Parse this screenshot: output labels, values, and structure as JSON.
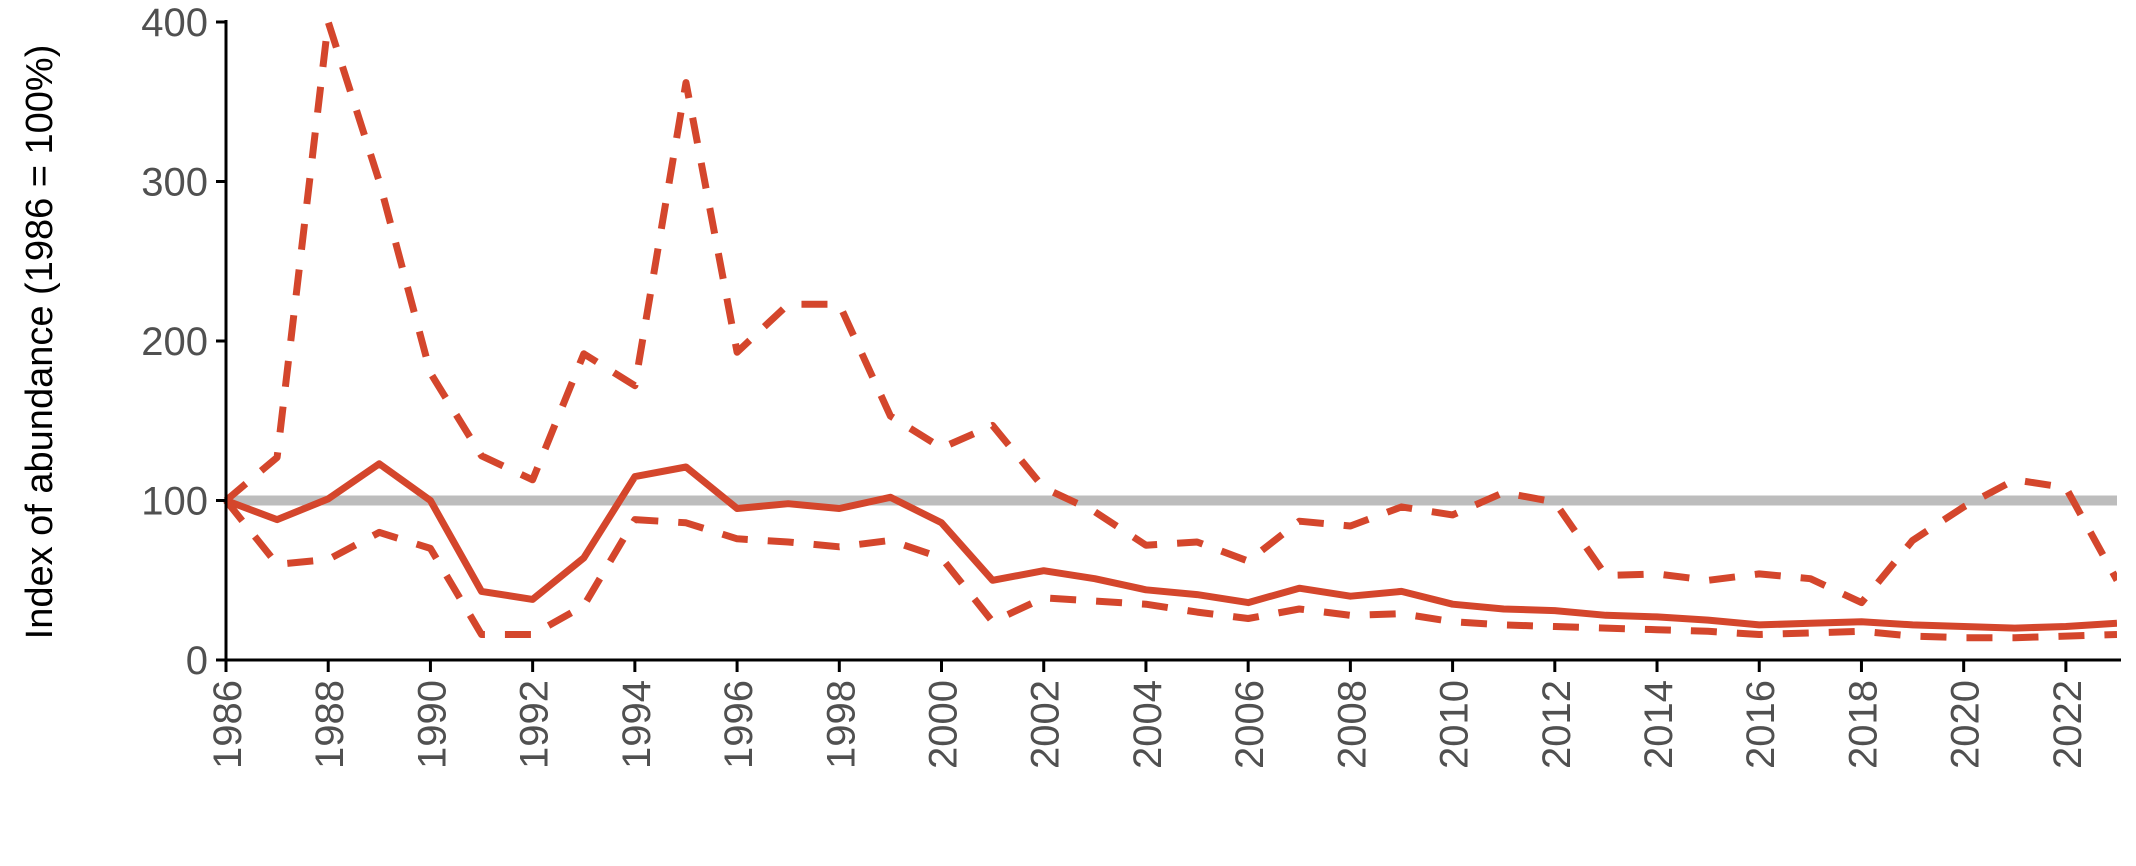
{
  "chart_data": {
    "type": "line",
    "ylabel": "Index of abundance (1986 = 100%)",
    "xlabel": "",
    "xlim": [
      1986,
      2023
    ],
    "ylim": [
      0,
      400
    ],
    "x_ticks": [
      "1986",
      "1988",
      "1990",
      "1992",
      "1994",
      "1996",
      "1998",
      "2000",
      "2002",
      "2004",
      "2006",
      "2008",
      "2010",
      "2012",
      "2014",
      "2016",
      "2018",
      "2020",
      "2022"
    ],
    "y_ticks": [
      "0",
      "100",
      "200",
      "300",
      "400"
    ],
    "grid": false,
    "reference_line": {
      "y": 100,
      "color": "#bdbdbd"
    },
    "series": [
      {
        "style": "solid",
        "color": "#d4462c",
        "x": [
          1986,
          1987,
          1988,
          1989,
          1990,
          1991,
          1992,
          1993,
          1994,
          1995,
          1996,
          1997,
          1998,
          1999,
          2000,
          2001,
          2002,
          2003,
          2004,
          2005,
          2006,
          2007,
          2008,
          2009,
          2010,
          2011,
          2012,
          2013,
          2014,
          2015,
          2016,
          2017,
          2018,
          2019,
          2020,
          2021,
          2022,
          2023
        ],
        "values": [
          100,
          88,
          101,
          123,
          100,
          43,
          38,
          64,
          115,
          121,
          95,
          98,
          95,
          102,
          86,
          50,
          56,
          51,
          44,
          41,
          36,
          45,
          40,
          43,
          35,
          32,
          31,
          28,
          27,
          25,
          22,
          23,
          24,
          22,
          21,
          20,
          21,
          23
        ]
      },
      {
        "style": "dashed",
        "color": "#d4462c",
        "x": [
          1986,
          1987,
          1988,
          1989,
          1990,
          1991,
          1992,
          1993,
          1994,
          1995,
          1996,
          1997,
          1998,
          1999,
          2000,
          2001,
          2002,
          2003,
          2004,
          2005,
          2006,
          2007,
          2008,
          2009,
          2010,
          2011,
          2012,
          2013,
          2014,
          2015,
          2016,
          2017,
          2018,
          2019,
          2020,
          2021,
          2022,
          2023
        ],
        "values": [
          100,
          127,
          400,
          300,
          180,
          128,
          113,
          192,
          172,
          362,
          193,
          223,
          223,
          153,
          133,
          147,
          108,
          93,
          72,
          74,
          62,
          87,
          84,
          96,
          91,
          105,
          99,
          53,
          54,
          50,
          54,
          51,
          36,
          75,
          96,
          113,
          108,
          50
        ]
      },
      {
        "style": "dashed",
        "color": "#d4462c",
        "x": [
          1986,
          1987,
          1988,
          1989,
          1990,
          1991,
          1992,
          1993,
          1994,
          1995,
          1996,
          1997,
          1998,
          1999,
          2000,
          2001,
          2002,
          2003,
          2004,
          2005,
          2006,
          2007,
          2008,
          2009,
          2010,
          2011,
          2012,
          2013,
          2014,
          2015,
          2016,
          2017,
          2018,
          2019,
          2020,
          2021,
          2022,
          2023
        ],
        "values": [
          100,
          60,
          63,
          80,
          70,
          16,
          16,
          34,
          88,
          86,
          76,
          74,
          71,
          75,
          64,
          24,
          39,
          37,
          35,
          30,
          26,
          32,
          28,
          29,
          24,
          22,
          21,
          20,
          19,
          18,
          16,
          17,
          18,
          15,
          14,
          14,
          15,
          16
        ]
      }
    ]
  }
}
